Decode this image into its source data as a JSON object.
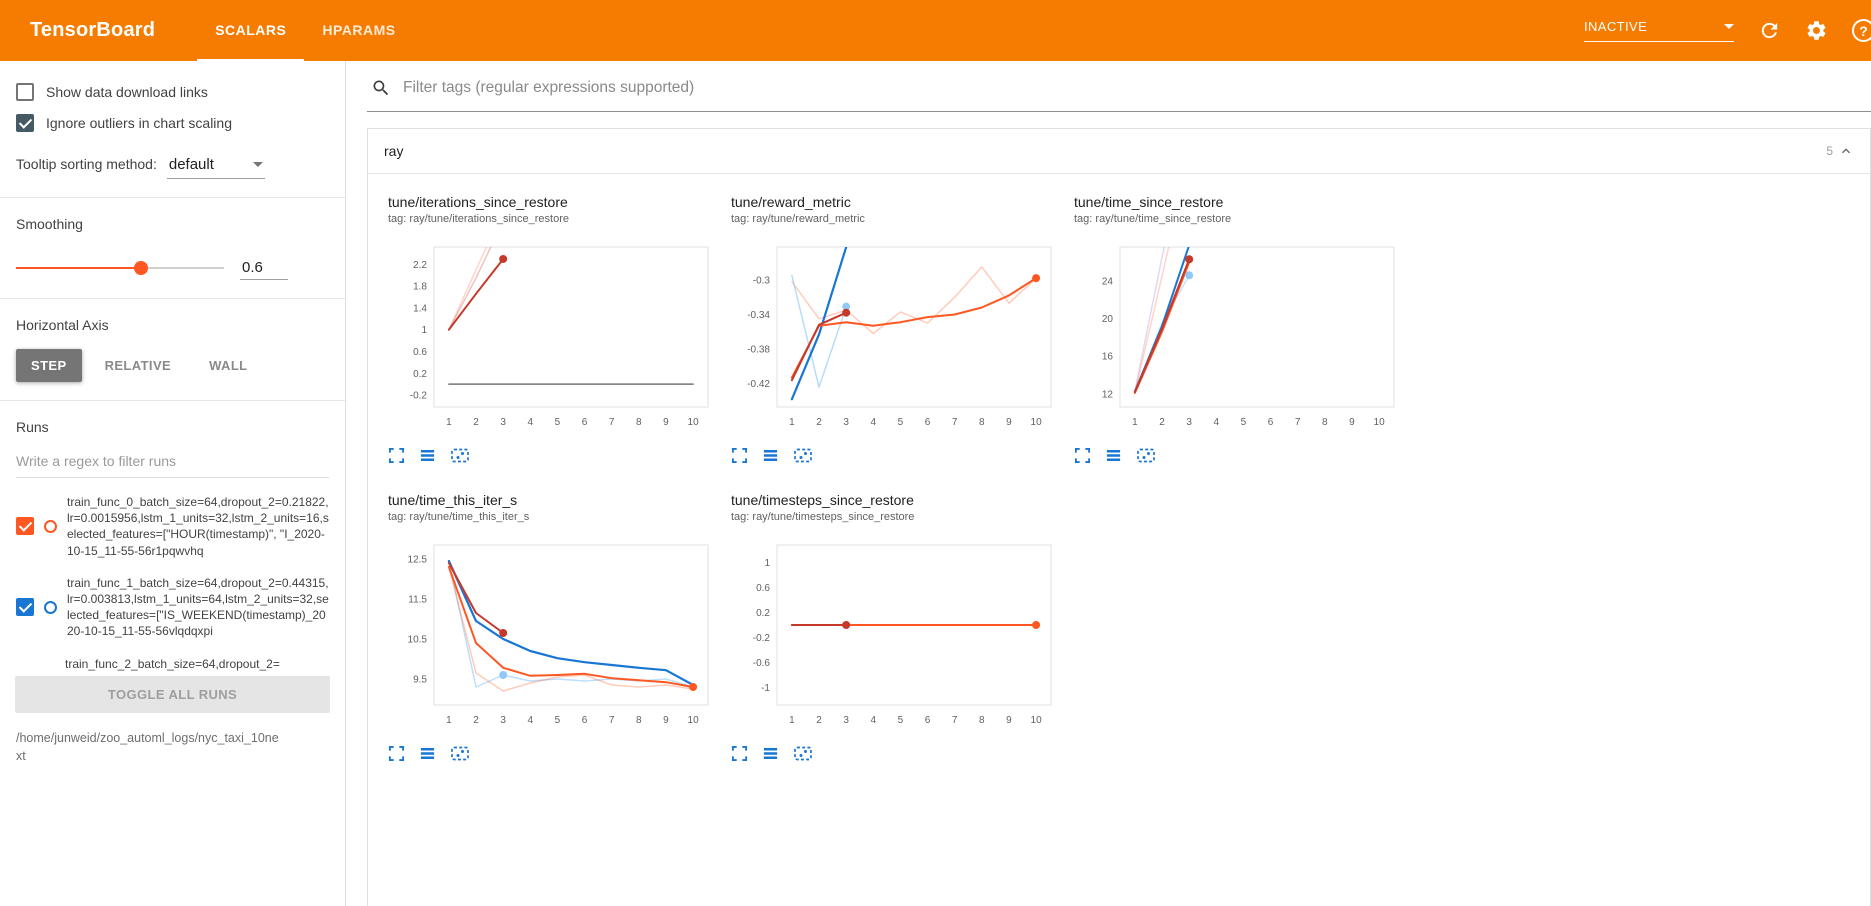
{
  "colors": {
    "header_bg": "#f57c00",
    "accent_orange": "#ff5722",
    "run_blue": "#1976d2",
    "dark_red": "#c5392b",
    "gray_line": "#757575",
    "icon_blue": "#1976d2"
  },
  "header": {
    "title": "TensorBoard",
    "tabs": [
      {
        "label": "SCALARS",
        "active": true
      },
      {
        "label": "HPARAMS",
        "active": false
      }
    ],
    "status_dropdown": "INACTIVE",
    "icons": [
      "dropdown-arrow-icon",
      "refresh-icon",
      "settings-gear-icon",
      "help-icon"
    ]
  },
  "sidebar": {
    "show_download_label": "Show data download links",
    "show_download_checked": false,
    "ignore_outliers_label": "Ignore outliers in chart scaling",
    "ignore_outliers_checked": true,
    "tooltip_label": "Tooltip sorting method:",
    "tooltip_value": "default",
    "smoothing_label": "Smoothing",
    "smoothing_value": "0.6",
    "haxis_label": "Horizontal Axis",
    "haxis_options": [
      "STEP",
      "RELATIVE",
      "WALL"
    ],
    "haxis_selected": "STEP",
    "runs_label": "Runs",
    "runs_filter_placeholder": "Write a regex to filter runs",
    "runs": [
      {
        "label": "train_func_0_batch_size=64,dropout_2=0.21822,lr=0.0015956,lstm_1_units=32,lstm_2_units=16,selected_features=[\"HOUR(timestamp)\", \"I_2020-10-15_11-55-56r1pqwvhq",
        "checked": true,
        "color": "#ff5722"
      },
      {
        "label": "train_func_1_batch_size=64,dropout_2=0.44315,lr=0.003813,lstm_1_units=64,lstm_2_units=32,selected_features=[\"IS_WEEKEND(timestamp)_2020-10-15_11-55-56vlqdqxpi",
        "checked": true,
        "color": "#1976d2"
      },
      {
        "label": "train_func_2_batch_size=64,dropout_2=",
        "checked": true,
        "color": "#9e9e9e",
        "partial": true
      }
    ],
    "toggle_all_label": "TOGGLE ALL RUNS",
    "log_path": "/home/junweid/zoo_automl_logs/nyc_taxi_10next"
  },
  "main": {
    "filter_placeholder": "Filter tags (regular expressions supported)",
    "section_title": "ray",
    "section_count": "5",
    "chart_action_icons": [
      "expand-chart-icon",
      "flip-y-axis-icon",
      "fit-domain-icon"
    ]
  },
  "chart_data": [
    {
      "type": "line",
      "title": "tune/iterations_since_restore",
      "tag_line": "tag: ray/tune/iterations_since_restore",
      "xlim": [
        0.45,
        10.55
      ],
      "ylim": [
        -0.42,
        2.52
      ],
      "xticks": [
        1,
        2,
        3,
        4,
        5,
        6,
        7,
        8,
        9,
        10
      ],
      "yticks": [
        -0.2,
        0.2,
        0.6,
        1,
        1.4,
        1.8,
        2.2
      ],
      "series": [
        {
          "name": "train_func_0 raw",
          "color": "#ff5722",
          "opacity": 0.25,
          "width": 1.5,
          "points": [
            [
              1,
              1
            ],
            [
              2,
              2.1
            ],
            [
              3,
              3.2
            ]
          ]
        },
        {
          "name": "train_func_0 raw 2",
          "color": "#c5392b",
          "opacity": 0.3,
          "width": 1.5,
          "points": [
            [
              1,
              1
            ],
            [
              2,
              1.95
            ],
            [
              3,
              3.0
            ]
          ]
        },
        {
          "name": "train_func_0 smoothed",
          "color": "#c5392b",
          "opacity": 1,
          "width": 2,
          "points": [
            [
              1,
              1
            ],
            [
              2,
              1.66
            ],
            [
              3,
              2.3
            ]
          ],
          "dots": [
            [
              3,
              2.3
            ]
          ]
        },
        {
          "name": "flat run",
          "color": "#757575",
          "opacity": 1,
          "width": 1.5,
          "points": [
            [
              1,
              0
            ],
            [
              10,
              0
            ]
          ]
        }
      ]
    },
    {
      "type": "line",
      "title": "tune/reward_metric",
      "tag_line": "tag: ray/tune/reward_metric",
      "xlim": [
        0.45,
        10.55
      ],
      "ylim": [
        -0.447,
        -0.262
      ],
      "xticks": [
        1,
        2,
        3,
        4,
        5,
        6,
        7,
        8,
        9,
        10
      ],
      "yticks": [
        -0.42,
        -0.38,
        -0.34,
        -0.3
      ],
      "series": [
        {
          "name": "train_func_0 raw",
          "color": "#ff5722",
          "opacity": 0.3,
          "width": 1.5,
          "points": [
            [
              1,
              -0.302
            ],
            [
              2,
              -0.345
            ],
            [
              3,
              -0.335
            ],
            [
              4,
              -0.362
            ],
            [
              5,
              -0.337
            ],
            [
              6,
              -0.35
            ],
            [
              7,
              -0.32
            ],
            [
              8,
              -0.285
            ],
            [
              9,
              -0.327
            ],
            [
              10,
              -0.298
            ]
          ]
        },
        {
          "name": "train_func_1 raw",
          "color": "#90caf9",
          "opacity": 0.65,
          "width": 1.5,
          "points": [
            [
              1,
              -0.295
            ],
            [
              2,
              -0.424
            ],
            [
              3,
              -0.331
            ]
          ],
          "dots": [
            [
              3,
              -0.331
            ]
          ]
        },
        {
          "name": "train_func_1 smoothed",
          "color": "#1976d2",
          "opacity": 1,
          "width": 2.2,
          "points": [
            [
              1,
              -0.438
            ],
            [
              2,
              -0.363
            ],
            [
              3,
              -0.262
            ]
          ]
        },
        {
          "name": "train_func_0 smoothed",
          "color": "#ff5722",
          "opacity": 1,
          "width": 2,
          "points": [
            [
              1,
              -0.413
            ],
            [
              2,
              -0.353
            ],
            [
              3,
              -0.349
            ],
            [
              4,
              -0.353
            ],
            [
              5,
              -0.349
            ],
            [
              6,
              -0.343
            ],
            [
              7,
              -0.34
            ],
            [
              8,
              -0.332
            ],
            [
              9,
              -0.318
            ],
            [
              10,
              -0.298
            ]
          ],
          "dots": [
            [
              10,
              -0.298
            ]
          ]
        },
        {
          "name": "train_func_2 smoothed",
          "color": "#c5392b",
          "opacity": 1,
          "width": 2,
          "points": [
            [
              1,
              -0.416
            ],
            [
              2,
              -0.352
            ],
            [
              3,
              -0.338
            ]
          ],
          "dots": [
            [
              3,
              -0.338
            ]
          ]
        }
      ]
    },
    {
      "type": "line",
      "title": "tune/time_since_restore",
      "tag_line": "tag: ray/tune/time_since_restore",
      "xlim": [
        0.45,
        10.55
      ],
      "ylim": [
        10.6,
        27.6
      ],
      "xticks": [
        1,
        2,
        3,
        4,
        5,
        6,
        7,
        8,
        9,
        10
      ],
      "yticks": [
        12,
        16,
        20,
        24
      ],
      "series": [
        {
          "name": "raw a",
          "color": "#b39ddb",
          "opacity": 0.4,
          "width": 1.5,
          "points": [
            [
              1,
              12.3
            ],
            [
              2,
              26.5
            ],
            [
              3,
              40
            ]
          ]
        },
        {
          "name": "raw b",
          "color": "#ff5722",
          "opacity": 0.25,
          "width": 1.5,
          "points": [
            [
              1,
              12.1
            ],
            [
              2,
              24.5
            ],
            [
              3,
              37
            ]
          ]
        },
        {
          "name": "train_func_1 raw",
          "color": "#90caf9",
          "opacity": 0.55,
          "width": 1.5,
          "points": [
            [
              1,
              12.2
            ],
            [
              2,
              19.5
            ],
            [
              3,
              24.6
            ]
          ],
          "dots": [
            [
              3,
              24.6
            ]
          ]
        },
        {
          "name": "train_func_1 smoothed",
          "color": "#1976d2",
          "opacity": 1,
          "width": 2,
          "points": [
            [
              1,
              12.25
            ],
            [
              2,
              19.2
            ],
            [
              3,
              27.8
            ]
          ]
        },
        {
          "name": "train_func_0 smoothed",
          "color": "#ff5722",
          "opacity": 1,
          "width": 2,
          "points": [
            [
              1,
              12.1
            ],
            [
              2,
              18.6
            ],
            [
              3,
              26.0
            ]
          ]
        },
        {
          "name": "train_func_2 smoothed",
          "color": "#c5392b",
          "opacity": 1,
          "width": 2,
          "points": [
            [
              1,
              12.2
            ],
            [
              2,
              18.9
            ],
            [
              3,
              26.3
            ]
          ],
          "dots": [
            [
              3,
              26.3
            ]
          ]
        }
      ]
    },
    {
      "type": "line",
      "title": "tune/time_this_iter_s",
      "tag_line": "tag: ray/tune/time_this_iter_s",
      "xlim": [
        0.45,
        10.55
      ],
      "ylim": [
        8.85,
        12.85
      ],
      "xticks": [
        1,
        2,
        3,
        4,
        5,
        6,
        7,
        8,
        9,
        10
      ],
      "yticks": [
        9.5,
        10.5,
        11.5,
        12.5
      ],
      "series": [
        {
          "name": "train_func_1 raw",
          "color": "#90caf9",
          "opacity": 0.6,
          "width": 1.5,
          "points": [
            [
              1,
              12.45
            ],
            [
              2,
              9.3
            ],
            [
              3,
              9.6
            ],
            [
              4,
              9.45
            ],
            [
              5,
              9.5
            ],
            [
              6,
              9.45
            ],
            [
              7,
              9.5
            ],
            [
              8,
              9.45
            ],
            [
              9,
              9.5
            ],
            [
              10,
              9.3
            ]
          ],
          "dots": [
            [
              3,
              9.6
            ]
          ]
        },
        {
          "name": "train_func_0 raw",
          "color": "#ff5722",
          "opacity": 0.3,
          "width": 1.5,
          "points": [
            [
              1,
              12.3
            ],
            [
              2,
              9.65
            ],
            [
              3,
              9.2
            ],
            [
              4,
              9.4
            ],
            [
              5,
              9.55
            ],
            [
              6,
              9.6
            ],
            [
              7,
              9.35
            ],
            [
              8,
              9.3
            ],
            [
              9,
              9.35
            ],
            [
              10,
              9.25
            ]
          ]
        },
        {
          "name": "train_func_1 smoothed",
          "color": "#1976d2",
          "opacity": 1,
          "width": 2.2,
          "points": [
            [
              1,
              12.45
            ],
            [
              2,
              10.95
            ],
            [
              3,
              10.5
            ],
            [
              4,
              10.2
            ],
            [
              5,
              10.02
            ],
            [
              6,
              9.92
            ],
            [
              7,
              9.85
            ],
            [
              8,
              9.78
            ],
            [
              9,
              9.72
            ],
            [
              10,
              9.35
            ]
          ]
        },
        {
          "name": "train_func_0 smoothed",
          "color": "#ff5722",
          "opacity": 1,
          "width": 2,
          "points": [
            [
              1,
              12.3
            ],
            [
              2,
              10.4
            ],
            [
              3,
              9.78
            ],
            [
              4,
              9.58
            ],
            [
              5,
              9.6
            ],
            [
              6,
              9.63
            ],
            [
              7,
              9.52
            ],
            [
              8,
              9.47
            ],
            [
              9,
              9.42
            ],
            [
              10,
              9.3
            ]
          ],
          "dots": [
            [
              10,
              9.3
            ]
          ]
        },
        {
          "name": "train_func_2 smoothed",
          "color": "#c5392b",
          "opacity": 1,
          "width": 2,
          "points": [
            [
              1,
              12.4
            ],
            [
              2,
              11.15
            ],
            [
              3,
              10.65
            ]
          ],
          "dots": [
            [
              3,
              10.65
            ]
          ]
        }
      ]
    },
    {
      "type": "line",
      "title": "tune/timesteps_since_restore",
      "tag_line": "tag: ray/tune/timesteps_since_restore",
      "xlim": [
        0.45,
        10.55
      ],
      "ylim": [
        -1.28,
        1.28
      ],
      "xticks": [
        1,
        2,
        3,
        4,
        5,
        6,
        7,
        8,
        9,
        10
      ],
      "yticks": [
        -1,
        -0.6,
        -0.2,
        0.2,
        0.6,
        1
      ],
      "series": [
        {
          "name": "flat gray",
          "color": "#757575",
          "opacity": 1,
          "width": 1.5,
          "points": [
            [
              1,
              0
            ],
            [
              10,
              0
            ]
          ]
        },
        {
          "name": "train_func_0 smoothed",
          "color": "#ff5722",
          "opacity": 1,
          "width": 2,
          "points": [
            [
              1,
              0
            ],
            [
              10,
              0
            ]
          ],
          "dots": [
            [
              10,
              0
            ]
          ]
        },
        {
          "name": "train_func_2 smoothed",
          "color": "#c5392b",
          "opacity": 1,
          "width": 2,
          "points": [
            [
              1,
              0
            ],
            [
              3,
              0
            ]
          ],
          "dots": [
            [
              3,
              0
            ]
          ]
        }
      ]
    }
  ]
}
